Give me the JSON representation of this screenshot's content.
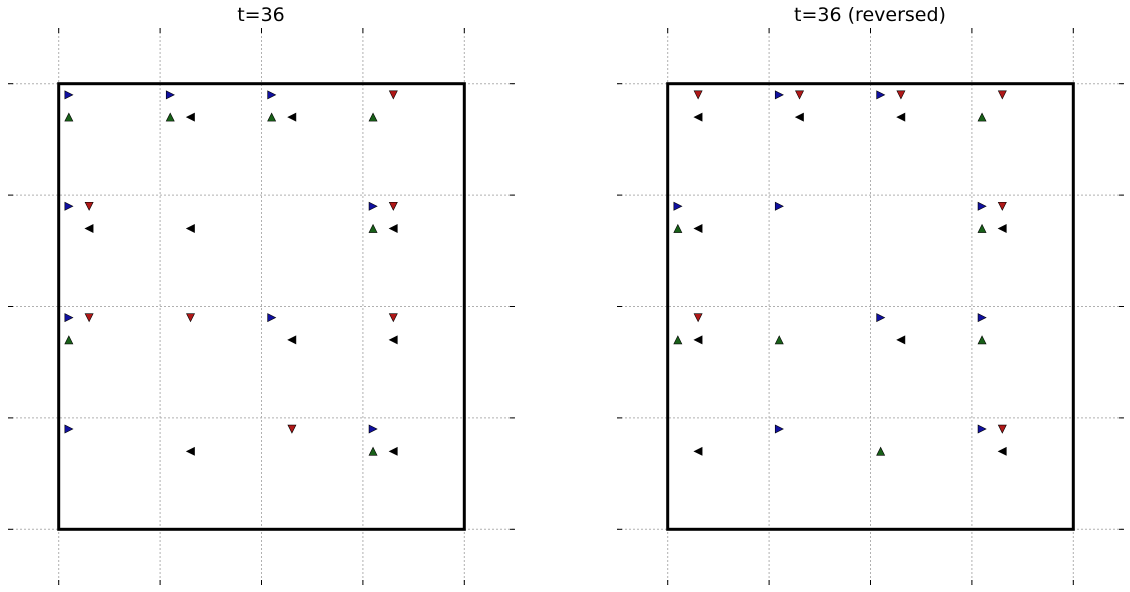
{
  "chart_data": [
    {
      "type": "scatter",
      "title": "t=36",
      "xlim": [
        -0.5,
        4.5
      ],
      "ylim": [
        -0.5,
        4.5
      ],
      "grid": true,
      "frame_box": [
        0,
        4
      ],
      "marker_offsets": {
        "right": [
          -0.4,
          0.4
        ],
        "down": [
          -0.2,
          0.4
        ],
        "up": [
          -0.4,
          0.2
        ],
        "left": [
          -0.2,
          0.2
        ]
      },
      "series": [
        {
          "marker": "right",
          "color": "#1010a0",
          "points": [
            [
              0,
              3
            ],
            [
              1,
              3
            ],
            [
              2,
              3
            ],
            [
              0,
              2
            ],
            [
              3,
              2
            ],
            [
              0,
              1
            ],
            [
              2,
              1
            ],
            [
              0,
              0
            ],
            [
              3,
              0
            ]
          ]
        },
        {
          "marker": "down",
          "color": "#b01818",
          "points": [
            [
              3,
              3
            ],
            [
              0,
              2
            ],
            [
              3,
              2
            ],
            [
              0,
              1
            ],
            [
              1,
              1
            ],
            [
              3,
              1
            ],
            [
              2,
              0
            ]
          ]
        },
        {
          "marker": "up",
          "color": "#186018",
          "points": [
            [
              0,
              3
            ],
            [
              1,
              3
            ],
            [
              2,
              3
            ],
            [
              3,
              3
            ],
            [
              3,
              2
            ],
            [
              0,
              1
            ],
            [
              3,
              0
            ]
          ]
        },
        {
          "marker": "left",
          "color": "#000000",
          "points": [
            [
              1,
              3
            ],
            [
              2,
              3
            ],
            [
              0,
              2
            ],
            [
              1,
              2
            ],
            [
              3,
              2
            ],
            [
              2,
              1
            ],
            [
              3,
              1
            ],
            [
              1,
              0
            ],
            [
              3,
              0
            ]
          ]
        }
      ]
    },
    {
      "type": "scatter",
      "title": "t=36 (reversed)",
      "xlim": [
        -0.5,
        4.5
      ],
      "ylim": [
        -0.5,
        4.5
      ],
      "grid": true,
      "frame_box": [
        0,
        4
      ],
      "marker_offsets": {
        "right": [
          -0.4,
          0.4
        ],
        "down": [
          -0.2,
          0.4
        ],
        "up": [
          -0.4,
          0.2
        ],
        "left": [
          -0.2,
          0.2
        ]
      },
      "series": [
        {
          "marker": "right",
          "color": "#1010a0",
          "points": [
            [
              1,
              3
            ],
            [
              2,
              3
            ],
            [
              0,
              2
            ],
            [
              1,
              2
            ],
            [
              3,
              2
            ],
            [
              2,
              1
            ],
            [
              3,
              1
            ],
            [
              1,
              0
            ],
            [
              3,
              0
            ]
          ]
        },
        {
          "marker": "down",
          "color": "#b01818",
          "points": [
            [
              0,
              3
            ],
            [
              1,
              3
            ],
            [
              2,
              3
            ],
            [
              3,
              3
            ],
            [
              3,
              2
            ],
            [
              0,
              1
            ],
            [
              3,
              0
            ]
          ]
        },
        {
          "marker": "up",
          "color": "#186018",
          "points": [
            [
              3,
              3
            ],
            [
              0,
              2
            ],
            [
              3,
              2
            ],
            [
              0,
              1
            ],
            [
              1,
              1
            ],
            [
              3,
              1
            ],
            [
              2,
              0
            ]
          ]
        },
        {
          "marker": "left",
          "color": "#000000",
          "points": [
            [
              0,
              3
            ],
            [
              1,
              3
            ],
            [
              2,
              3
            ],
            [
              0,
              2
            ],
            [
              3,
              2
            ],
            [
              0,
              1
            ],
            [
              2,
              1
            ],
            [
              0,
              0
            ],
            [
              3,
              0
            ]
          ]
        }
      ]
    }
  ]
}
